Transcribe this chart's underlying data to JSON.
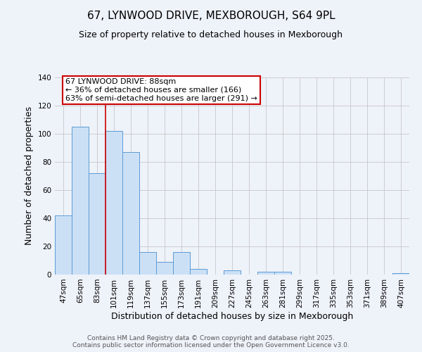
{
  "title": "67, LYNWOOD DRIVE, MEXBOROUGH, S64 9PL",
  "subtitle": "Size of property relative to detached houses in Mexborough",
  "xlabel": "Distribution of detached houses by size in Mexborough",
  "ylabel": "Number of detached properties",
  "categories": [
    "47sqm",
    "65sqm",
    "83sqm",
    "101sqm",
    "119sqm",
    "137sqm",
    "155sqm",
    "173sqm",
    "191sqm",
    "209sqm",
    "227sqm",
    "245sqm",
    "263sqm",
    "281sqm",
    "299sqm",
    "317sqm",
    "335sqm",
    "353sqm",
    "371sqm",
    "389sqm",
    "407sqm"
  ],
  "values": [
    42,
    105,
    72,
    102,
    87,
    16,
    9,
    16,
    4,
    0,
    3,
    0,
    2,
    2,
    0,
    0,
    0,
    0,
    0,
    0,
    1
  ],
  "bar_color": "#cce0f5",
  "bar_edge_color": "#5b9bd5",
  "annotation_line_color": "#cc0000",
  "annotation_box_text": "67 LYNWOOD DRIVE: 88sqm\n← 36% of detached houses are smaller (166)\n63% of semi-detached houses are larger (291) →",
  "ylim": [
    0,
    140
  ],
  "yticks": [
    0,
    20,
    40,
    60,
    80,
    100,
    120,
    140
  ],
  "footer_line1": "Contains HM Land Registry data © Crown copyright and database right 2025.",
  "footer_line2": "Contains public sector information licensed under the Open Government Licence v3.0.",
  "background_color": "#eef2f9",
  "grid_color": "#c8c8c8",
  "title_fontsize": 11,
  "subtitle_fontsize": 9,
  "axis_label_fontsize": 9,
  "tick_fontsize": 7.5,
  "annotation_fontsize": 8,
  "footer_fontsize": 6.5
}
